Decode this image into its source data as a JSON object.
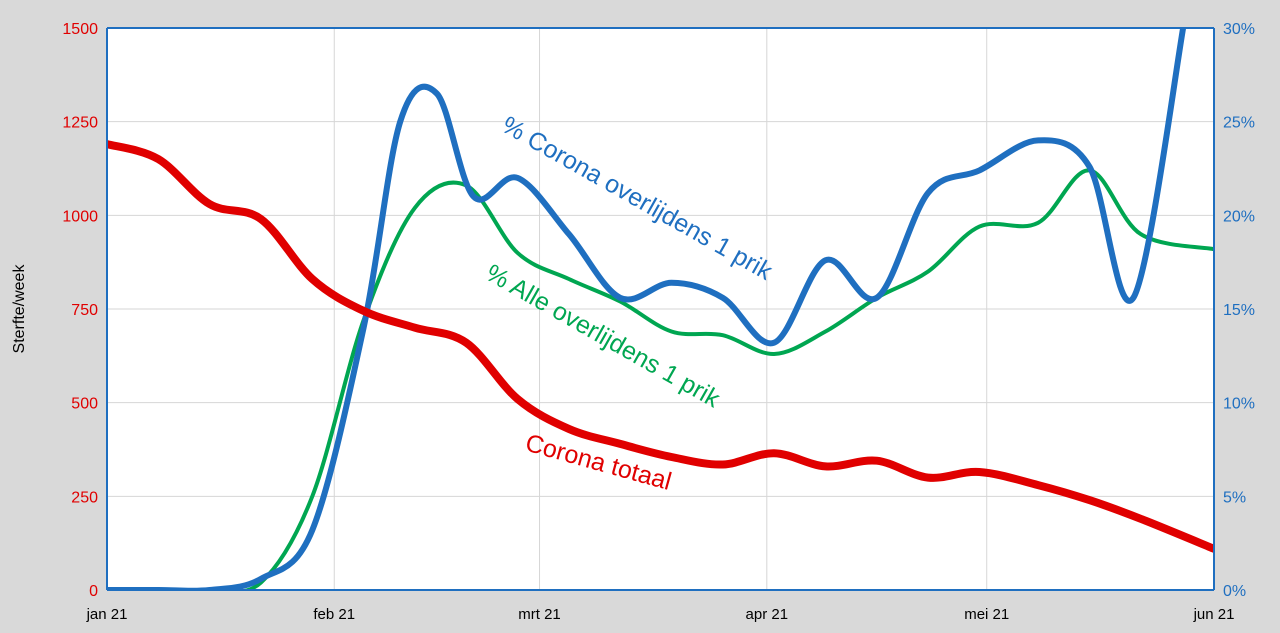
{
  "chart_data": {
    "type": "line",
    "ylabel": "Sterfte/week",
    "x_ticks": [
      "jan 21",
      "feb 21",
      "mrt 21",
      "apr 21",
      "mei 21",
      "jun 21"
    ],
    "x_range": [
      "2021-01-01",
      "2021-06-01"
    ],
    "y_left": {
      "range": [
        0,
        1500
      ],
      "ticks": [
        0,
        250,
        500,
        750,
        1000,
        1250,
        1500
      ],
      "color": "#e00000"
    },
    "y_right": {
      "range": [
        0,
        30
      ],
      "ticks": [
        "0%",
        "5%",
        "10%",
        "15%",
        "20%",
        "25%",
        "30%"
      ],
      "color": "#1f6fc0"
    },
    "grid": true,
    "series": [
      {
        "name": "% Corona overlijdens 1 prik",
        "axis": "right",
        "color": "#1f6fc0",
        "points": [
          [
            "2021-01-01",
            0
          ],
          [
            "2021-01-08",
            0
          ],
          [
            "2021-01-15",
            0
          ],
          [
            "2021-01-22",
            0.6
          ],
          [
            "2021-01-29",
            3.2
          ],
          [
            "2021-02-05",
            14
          ],
          [
            "2021-02-10",
            25
          ],
          [
            "2021-02-15",
            26.5
          ],
          [
            "2021-02-20",
            21
          ],
          [
            "2021-02-26",
            22
          ],
          [
            "2021-03-05",
            19
          ],
          [
            "2021-03-12",
            15.6
          ],
          [
            "2021-03-19",
            16.4
          ],
          [
            "2021-03-26",
            15.6
          ],
          [
            "2021-04-02",
            13.2
          ],
          [
            "2021-04-09",
            17.6
          ],
          [
            "2021-04-16",
            15.6
          ],
          [
            "2021-04-23",
            21.2
          ],
          [
            "2021-04-30",
            22.4
          ],
          [
            "2021-05-08",
            24
          ],
          [
            "2021-05-15",
            22.6
          ],
          [
            "2021-05-21",
            15.6
          ],
          [
            "2021-05-28",
            30.5
          ]
        ]
      },
      {
        "name": "% Alle overlijdens 1 prik",
        "axis": "right",
        "color": "#00a651",
        "points": [
          [
            "2021-01-01",
            0
          ],
          [
            "2021-01-08",
            0
          ],
          [
            "2021-01-15",
            0
          ],
          [
            "2021-01-22",
            0.4
          ],
          [
            "2021-01-29",
            5
          ],
          [
            "2021-02-05",
            14.4
          ],
          [
            "2021-02-12",
            20.4
          ],
          [
            "2021-02-19",
            21.6
          ],
          [
            "2021-02-26",
            18
          ],
          [
            "2021-03-05",
            16.6
          ],
          [
            "2021-03-12",
            15.4
          ],
          [
            "2021-03-19",
            13.8
          ],
          [
            "2021-03-26",
            13.6
          ],
          [
            "2021-04-02",
            12.6
          ],
          [
            "2021-04-09",
            13.8
          ],
          [
            "2021-04-16",
            15.6
          ],
          [
            "2021-04-23",
            17
          ],
          [
            "2021-04-30",
            19.4
          ],
          [
            "2021-05-08",
            19.6
          ],
          [
            "2021-05-15",
            22.4
          ],
          [
            "2021-05-22",
            19
          ],
          [
            "2021-06-01",
            18.2
          ]
        ]
      },
      {
        "name": "Corona totaal",
        "axis": "left",
        "color": "#e00000",
        "points": [
          [
            "2021-01-01",
            1190
          ],
          [
            "2021-01-08",
            1150
          ],
          [
            "2021-01-15",
            1030
          ],
          [
            "2021-01-22",
            990
          ],
          [
            "2021-01-29",
            830
          ],
          [
            "2021-02-05",
            745
          ],
          [
            "2021-02-12",
            700
          ],
          [
            "2021-02-19",
            660
          ],
          [
            "2021-02-26",
            510
          ],
          [
            "2021-03-05",
            430
          ],
          [
            "2021-03-12",
            390
          ],
          [
            "2021-03-19",
            355
          ],
          [
            "2021-03-26",
            335
          ],
          [
            "2021-04-02",
            365
          ],
          [
            "2021-04-09",
            330
          ],
          [
            "2021-04-16",
            345
          ],
          [
            "2021-04-23",
            300
          ],
          [
            "2021-04-30",
            315
          ],
          [
            "2021-05-08",
            280
          ],
          [
            "2021-05-15",
            240
          ],
          [
            "2021-05-22",
            190
          ],
          [
            "2021-06-01",
            110
          ]
        ]
      }
    ]
  }
}
